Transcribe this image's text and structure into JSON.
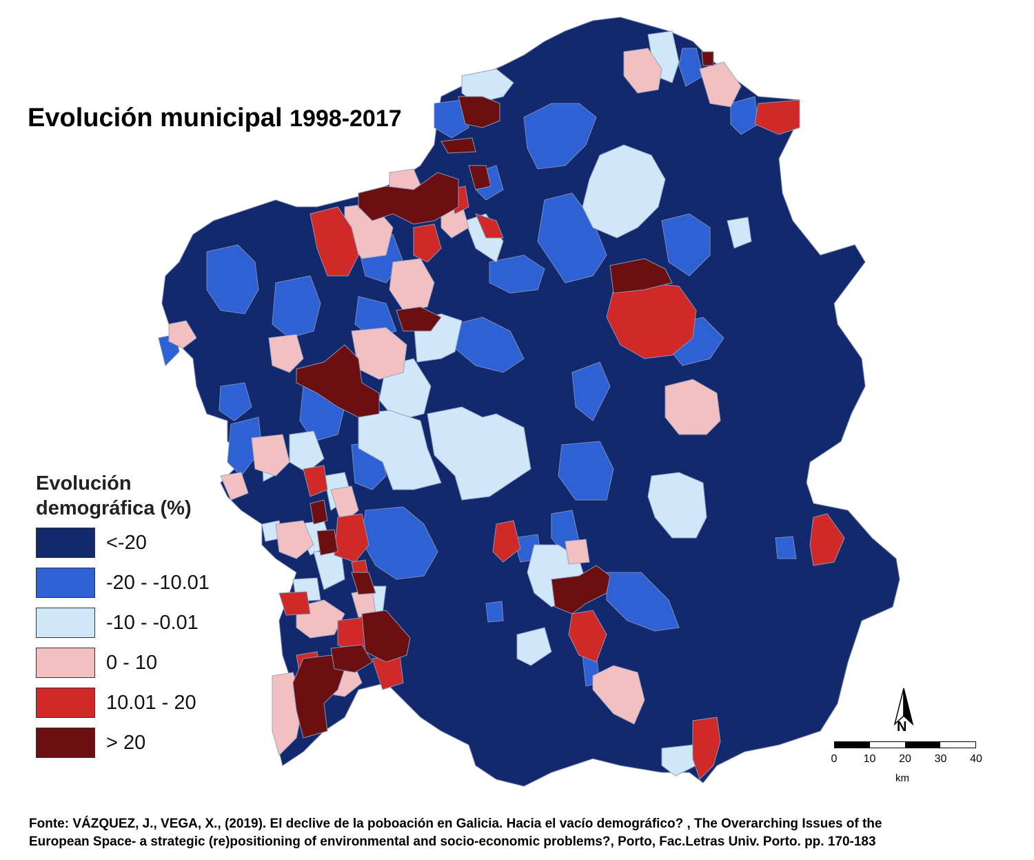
{
  "title": {
    "text": "Evolución municipal",
    "years": "1998-2017"
  },
  "legend": {
    "title_line1": "Evolución",
    "title_line2": "demográfica (%)",
    "classes": [
      {
        "label": "<-20",
        "color": "#13296e"
      },
      {
        "label": "-20 - -10.01",
        "color": "#2e62d4"
      },
      {
        "label": "-10 - -0.01",
        "color": "#cfe7f7"
      },
      {
        "label": "0 - 10",
        "color": "#f3c0c2"
      },
      {
        "label": "10.01 - 20",
        "color": "#cf2a27"
      },
      {
        "label": "> 20",
        "color": "#6b0f10"
      }
    ]
  },
  "north_arrow": {
    "label": "N"
  },
  "scale_bar": {
    "ticks": [
      "0",
      "10",
      "20",
      "30",
      "40"
    ],
    "unit": "km"
  },
  "source": {
    "line1": "Fonte: VÁZQUEZ, J., VEGA, X., (2019). El declive de la poboación en Galicia. Hacia el vacío demográfico? , The Overarching Issues of the",
    "line2": "European Space- a strategic (re)positioning of environmental and socio-economic problems?, Porto, Fac.Letras Univ. Porto. pp. 170-183"
  }
}
